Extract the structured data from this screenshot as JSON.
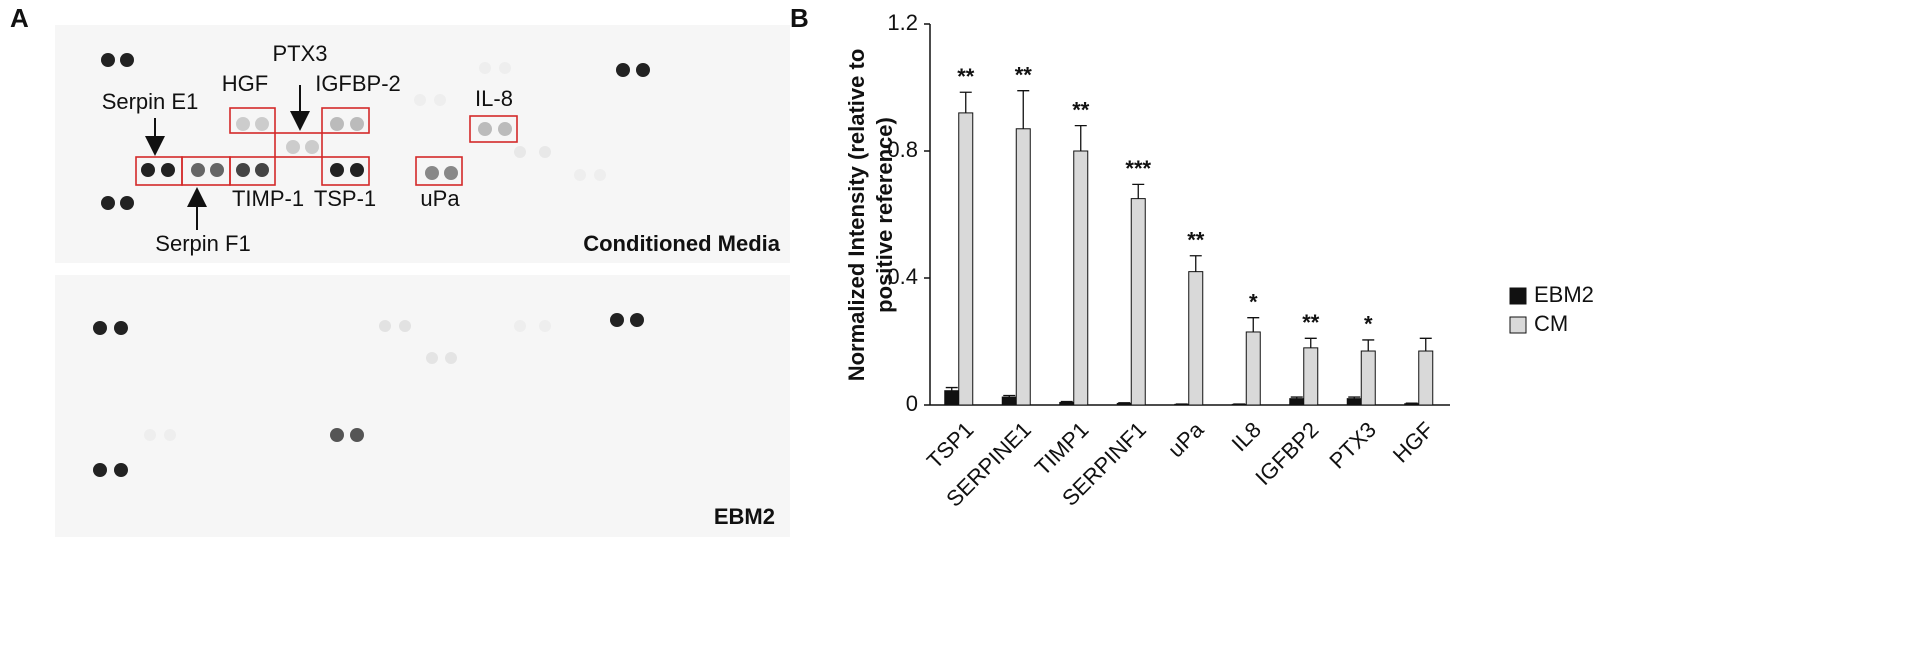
{
  "panel_a": {
    "panel_label": "A",
    "annotations": [
      "Serpin E1",
      "HGF",
      "PTX3",
      "IGFBP-2",
      "IL-8",
      "Serpin F1",
      "TIMP-1",
      "TSP-1",
      "uPa"
    ],
    "membranes": [
      "Conditioned Media",
      "EBM2"
    ]
  },
  "chart_data": {
    "type": "bar",
    "panel_label": "B",
    "ylabel": [
      "Normalized Intensity (relative to",
      "positive reference)"
    ],
    "categories": [
      "TSP1",
      "SERPINE1",
      "TIMP1",
      "SERPINF1",
      "uPa",
      "IL8",
      "IGFBP2",
      "PTX3",
      "HGF"
    ],
    "series": [
      {
        "name": "EBM2",
        "color": "#111111",
        "values": [
          0.045,
          0.025,
          0.008,
          0.005,
          0.002,
          0.002,
          0.02,
          0.02,
          0.004
        ],
        "errors": [
          0.01,
          0.005,
          0.003,
          0.002,
          0.001,
          0.001,
          0.005,
          0.005,
          0.002
        ]
      },
      {
        "name": "CM",
        "color": "#d9d9d9",
        "values": [
          0.92,
          0.87,
          0.8,
          0.65,
          0.42,
          0.23,
          0.18,
          0.17,
          0.17
        ],
        "errors": [
          0.065,
          0.12,
          0.08,
          0.045,
          0.05,
          0.045,
          0.03,
          0.035,
          0.04
        ]
      }
    ],
    "significance": [
      "**",
      "**",
      "**",
      "***",
      "**",
      "*",
      "**",
      "*",
      null
    ],
    "ylim": [
      0,
      1.2
    ],
    "yticks": [
      0,
      0.4,
      0.8,
      1.2
    ],
    "legend": "right"
  }
}
